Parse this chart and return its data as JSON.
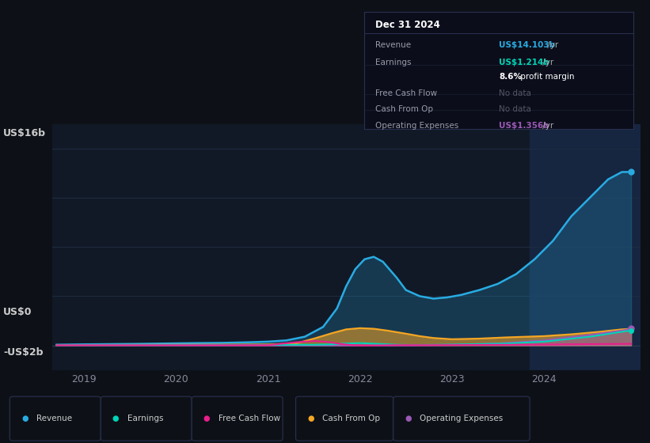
{
  "bg_color": "#0d1117",
  "plot_bg_color": "#111927",
  "highlight_bg": "#162540",
  "grid_color": "#1e2d40",
  "ylim": [
    -2000000000.0,
    18000000000.0
  ],
  "y_zero": 0,
  "y_top_label": "US$16b",
  "y_zero_label": "US$0",
  "y_bot_label": "-US$2b",
  "y_top_val": 16000000000.0,
  "y_bot_val": -2000000000.0,
  "xlabel_years": [
    2019,
    2020,
    2021,
    2022,
    2023,
    2024
  ],
  "legend": [
    {
      "label": "Revenue",
      "color": "#29abe2"
    },
    {
      "label": "Earnings",
      "color": "#00d4b8"
    },
    {
      "label": "Free Cash Flow",
      "color": "#e91e8c"
    },
    {
      "label": "Cash From Op",
      "color": "#f5a623"
    },
    {
      "label": "Operating Expenses",
      "color": "#9b59b6"
    }
  ],
  "tooltip": {
    "title": "Dec 31 2024",
    "rows": [
      {
        "label": "Revenue",
        "value": "US$14.103b",
        "suffix": " /yr",
        "value_color": "#29abe2",
        "nodata": false
      },
      {
        "label": "Earnings",
        "value": "US$1.214b",
        "suffix": " /yr",
        "value_color": "#00d4b8",
        "nodata": false
      },
      {
        "label": "",
        "value": "8.6%",
        "suffix": " profit margin",
        "value_color": "#ffffff",
        "nodata": false,
        "bold_value": true
      },
      {
        "label": "Free Cash Flow",
        "value": "No data",
        "suffix": "",
        "value_color": "#555566",
        "nodata": true
      },
      {
        "label": "Cash From Op",
        "value": "No data",
        "suffix": "",
        "value_color": "#555566",
        "nodata": true
      },
      {
        "label": "Operating Expenses",
        "value": "US$1.356b",
        "suffix": " /yr",
        "value_color": "#9b59b6",
        "nodata": false
      }
    ]
  },
  "revenue_x": [
    2018.7,
    2019.0,
    2019.3,
    2019.6,
    2019.9,
    2020.2,
    2020.5,
    2020.8,
    2021.0,
    2021.2,
    2021.4,
    2021.6,
    2021.75,
    2021.85,
    2021.95,
    2022.05,
    2022.15,
    2022.25,
    2022.4,
    2022.5,
    2022.65,
    2022.8,
    2022.95,
    2023.1,
    2023.3,
    2023.5,
    2023.7,
    2023.9,
    2024.1,
    2024.3,
    2024.5,
    2024.7,
    2024.85,
    2024.95
  ],
  "revenue_y": [
    50000000.0,
    80000000.0,
    100000000.0,
    120000000.0,
    150000000.0,
    180000000.0,
    200000000.0,
    250000000.0,
    300000000.0,
    400000000.0,
    700000000.0,
    1500000000.0,
    3000000000.0,
    4800000000.0,
    6200000000.0,
    7000000000.0,
    7200000000.0,
    6800000000.0,
    5500000000.0,
    4500000000.0,
    4000000000.0,
    3800000000.0,
    3900000000.0,
    4100000000.0,
    4500000000.0,
    5000000000.0,
    5800000000.0,
    7000000000.0,
    8500000000.0,
    10500000000.0,
    12000000000.0,
    13500000000.0,
    14100000000.0,
    14103000000.0
  ],
  "earnings_x": [
    2018.7,
    2019.0,
    2019.5,
    2020.0,
    2020.5,
    2021.0,
    2021.5,
    2021.7,
    2021.85,
    2022.0,
    2022.2,
    2022.4,
    2022.6,
    2022.8,
    2023.0,
    2023.3,
    2023.6,
    2024.0,
    2024.5,
    2024.95
  ],
  "earnings_y": [
    0.0,
    10000000.0,
    10000000.0,
    20000000.0,
    30000000.0,
    40000000.0,
    50000000.0,
    80000000.0,
    150000000.0,
    180000000.0,
    120000000.0,
    50000000.0,
    30000000.0,
    40000000.0,
    60000000.0,
    100000000.0,
    150000000.0,
    300000000.0,
    700000000.0,
    1214000000.0
  ],
  "fcf_x": [
    2018.7,
    2019.0,
    2019.5,
    2020.0,
    2020.5,
    2021.0,
    2021.3,
    2021.5,
    2021.65,
    2021.8,
    2021.95,
    2022.1,
    2022.3,
    2022.5,
    2022.7,
    2023.0,
    2023.5,
    2024.0,
    2024.5,
    2024.95
  ],
  "fcf_y": [
    0.0,
    5000000.0,
    5000000.0,
    5000000.0,
    10000000.0,
    15000000.0,
    250000000.0,
    350000000.0,
    280000000.0,
    100000000.0,
    0.0,
    -20000000.0,
    10000000.0,
    20000000.0,
    15000000.0,
    20000000.0,
    40000000.0,
    60000000.0,
    100000000.0,
    120000000.0
  ],
  "cop_x": [
    2018.7,
    2019.0,
    2019.5,
    2020.0,
    2020.5,
    2021.0,
    2021.3,
    2021.5,
    2021.7,
    2021.85,
    2022.0,
    2022.15,
    2022.3,
    2022.5,
    2022.65,
    2022.8,
    2023.0,
    2023.3,
    2023.6,
    2024.0,
    2024.3,
    2024.6,
    2024.85,
    2024.95
  ],
  "cop_y": [
    20000000.0,
    30000000.0,
    40000000.0,
    50000000.0,
    60000000.0,
    80000000.0,
    150000000.0,
    550000000.0,
    1000000000.0,
    1300000000.0,
    1400000000.0,
    1350000000.0,
    1200000000.0,
    950000000.0,
    750000000.0,
    600000000.0,
    500000000.0,
    550000000.0,
    650000000.0,
    750000000.0,
    900000000.0,
    1100000000.0,
    1300000000.0,
    1350000000.0
  ],
  "opex_x": [
    2018.7,
    2019.0,
    2019.5,
    2020.0,
    2020.5,
    2021.0,
    2021.5,
    2022.0,
    2022.5,
    2023.0,
    2023.5,
    2024.0,
    2024.5,
    2024.85,
    2024.95
  ],
  "opex_y": [
    0.0,
    0.0,
    0.0,
    0.0,
    0.0,
    0.0,
    0.0,
    0.0,
    0.0,
    50000000.0,
    150000000.0,
    400000000.0,
    850000000.0,
    1200000000.0,
    1356000000.0
  ],
  "highlight_x_start": 2023.85,
  "xmin": 2018.65,
  "xmax": 2025.05,
  "grid_y_vals": [
    -2000000000.0,
    0,
    4000000000.0,
    8000000000.0,
    12000000000.0,
    16000000000.0
  ]
}
